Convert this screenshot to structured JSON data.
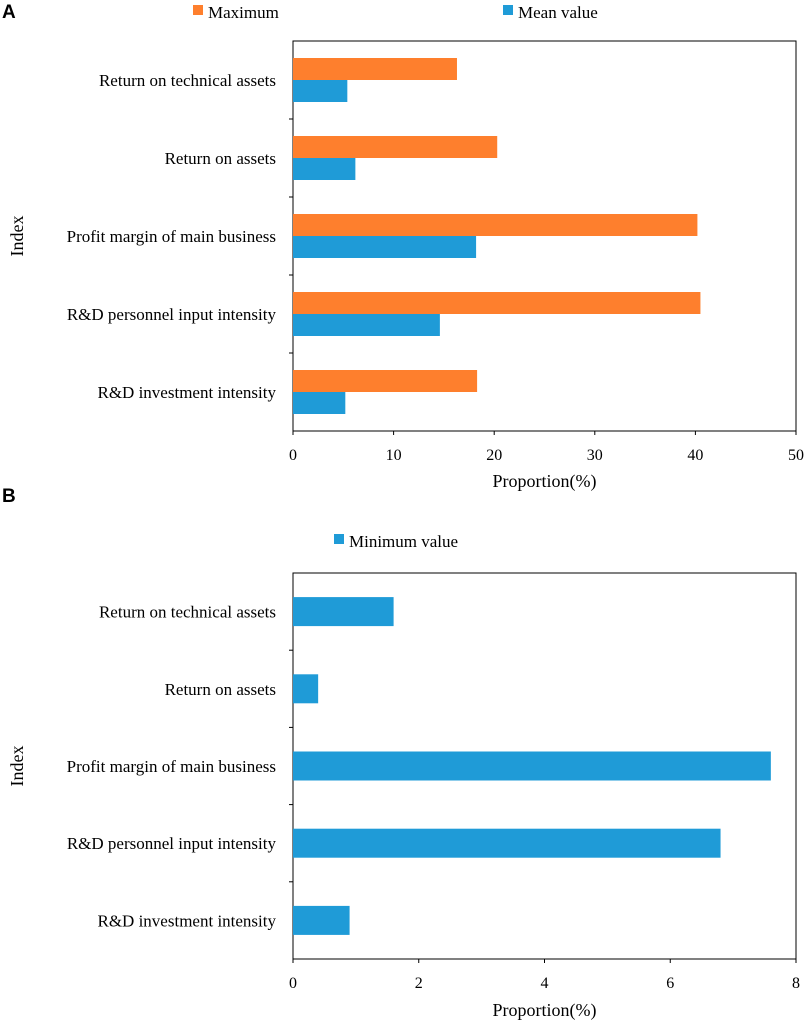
{
  "chart_data": [
    {
      "panel": "A",
      "type": "bar",
      "orientation": "horizontal",
      "categories": [
        "Return on technical assets",
        "Return on assets",
        "Profit margin of main business",
        "R&D personnel input intensity",
        "R&D investment intensity"
      ],
      "series": [
        {
          "name": "Maximum",
          "color": "#fe7f2d",
          "values": [
            16.3,
            20.3,
            40.2,
            40.5,
            18.3
          ]
        },
        {
          "name": "Mean value",
          "color": "#1f9bd7",
          "values": [
            5.4,
            6.2,
            18.2,
            14.6,
            5.2
          ]
        }
      ],
      "xlabel": "Proportion(%)",
      "ylabel": "Index",
      "xlim": [
        0,
        50
      ],
      "xticks": [
        "0",
        "10",
        "20",
        "30",
        "40",
        "50"
      ]
    },
    {
      "panel": "B",
      "type": "bar",
      "orientation": "horizontal",
      "categories": [
        "Return on technical assets",
        "Return on assets",
        "Profit margin of main business",
        "R&D personnel input intensity",
        "R&D investment intensity"
      ],
      "series": [
        {
          "name": "Minimum value",
          "color": "#1f9bd7",
          "values": [
            1.6,
            0.4,
            7.6,
            6.8,
            0.9
          ]
        }
      ],
      "xlabel": "Proportion(%)",
      "ylabel": "Index",
      "xlim": [
        0,
        8
      ],
      "xticks": [
        "0",
        "2",
        "4",
        "6",
        "8"
      ]
    }
  ]
}
